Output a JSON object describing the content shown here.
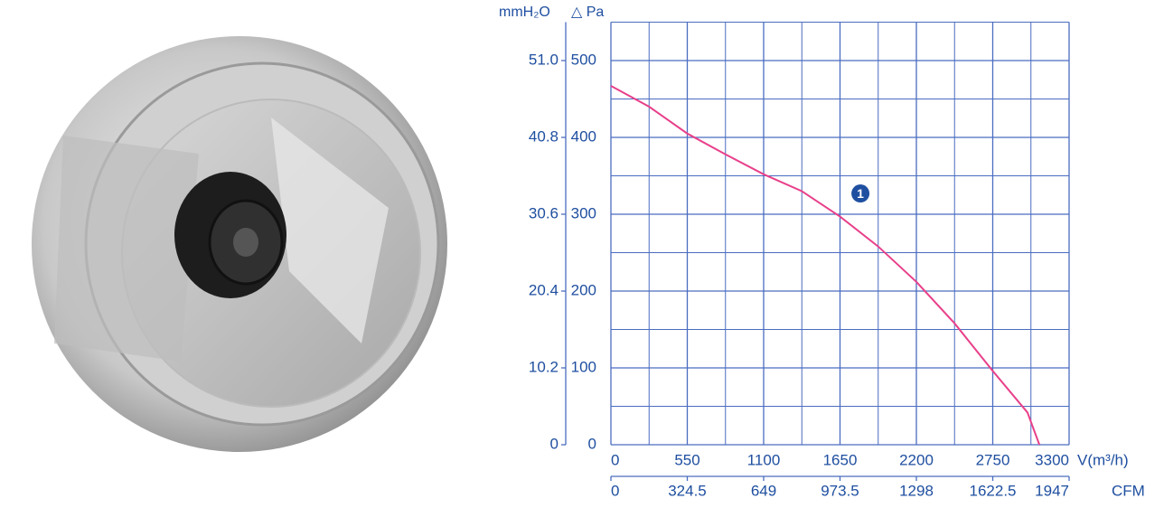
{
  "chart_data": {
    "type": "line",
    "y_label": "△ Pa",
    "y2_label": "mmH₂O",
    "x_label": "V(m³/h)",
    "x2_label": "CFM",
    "x": [
      0,
      275,
      550,
      825,
      1100,
      1375,
      1650,
      1925,
      2200,
      2475,
      2750,
      3000,
      3086
    ],
    "series": [
      {
        "name": "1",
        "color": "#e8408a",
        "values": [
          467,
          440,
          405,
          378,
          352,
          330,
          297,
          258,
          212,
          158,
          96,
          42,
          0
        ]
      }
    ],
    "annotations": [
      {
        "text": "1",
        "x": 1797,
        "y": 327,
        "color": "#1f4fa0"
      }
    ],
    "xlim": [
      0,
      3300
    ],
    "xticks": [
      0,
      550,
      1100,
      1650,
      2200,
      2750,
      3300
    ],
    "x2lim": [
      0,
      1947
    ],
    "x2ticks": [
      0,
      324.5,
      649,
      973.5,
      1298,
      1622.5,
      1947
    ],
    "ylim": [
      0,
      550
    ],
    "yticks": [
      0,
      100,
      200,
      300,
      400,
      500
    ],
    "y2lim": [
      0,
      56.1
    ],
    "y2ticks": [
      0,
      10.2,
      20.4,
      30.6,
      40.8,
      {
        "value": 51,
        "label": "51.0"
      }
    ],
    "minor_xticks": [
      275,
      825,
      1375,
      1925,
      2475,
      3025
    ],
    "minor_yticks": [
      50,
      150,
      250,
      350,
      450,
      550
    ],
    "grid": true,
    "grid_color": "#4a6cc0",
    "text_color": "#1f4fa0"
  }
}
